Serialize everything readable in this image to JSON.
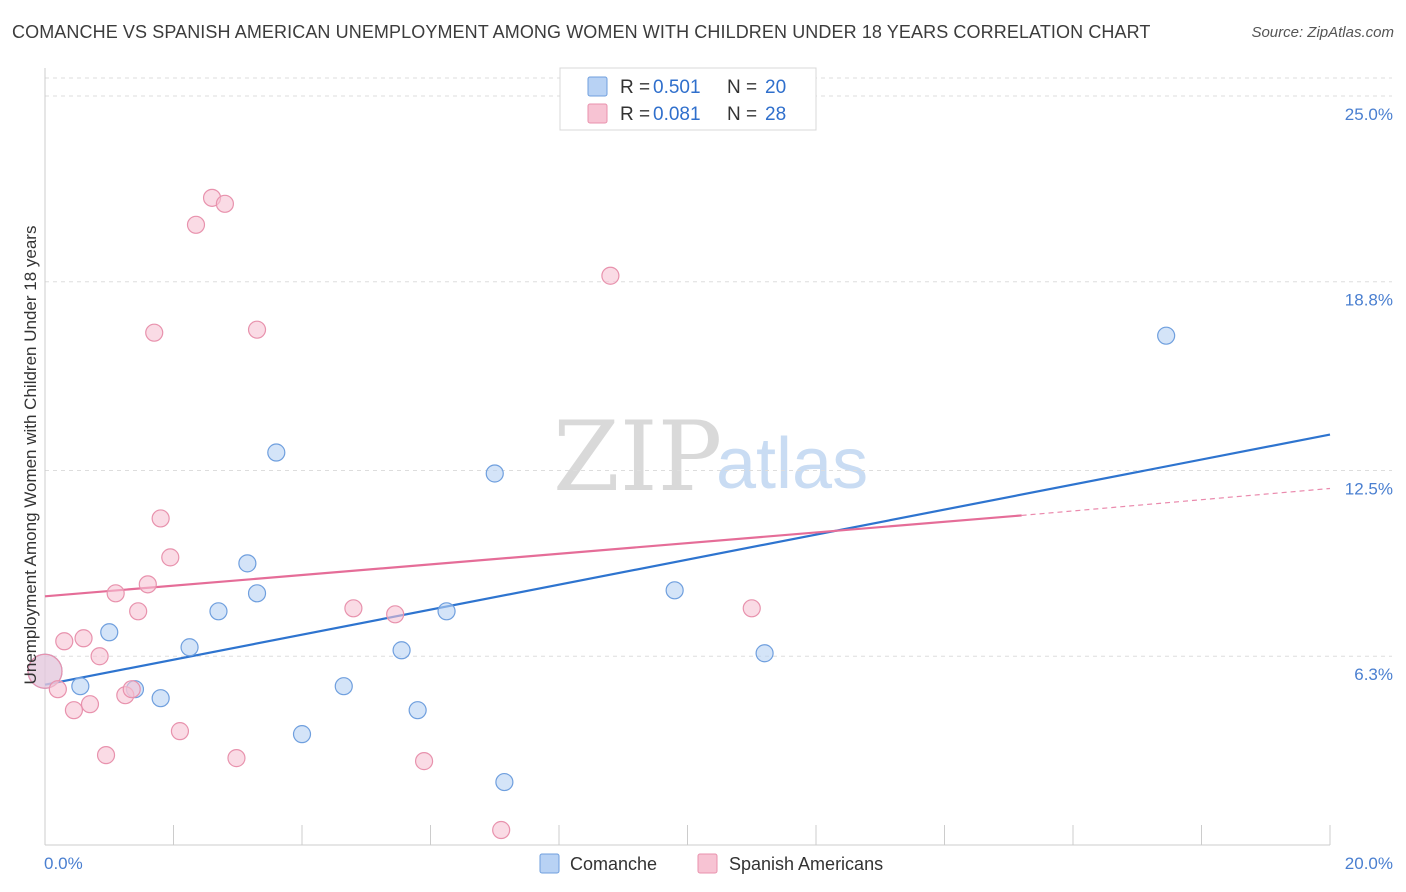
{
  "page": {
    "title": "COMANCHE VS SPANISH AMERICAN UNEMPLOYMENT AMONG WOMEN WITH CHILDREN UNDER 18 YEARS CORRELATION CHART",
    "source": "Source: ZipAtlas.com",
    "watermark": {
      "zip": "ZIP",
      "atlas": "atlas"
    }
  },
  "colors": {
    "comanche_fill": "#b8d2f4",
    "comanche_stroke": "#6f9fde",
    "comanche_line": "#2e74cf",
    "spanish_fill": "#f7c3d3",
    "spanish_stroke": "#e892ad",
    "spanish_line": "#e56d98",
    "grid": "#dddddd",
    "tick_label": "#4a7fd0"
  },
  "chart_data": {
    "type": "scatter",
    "title": "COMANCHE VS SPANISH AMERICAN UNEMPLOYMENT AMONG WOMEN WITH CHILDREN UNDER 18 YEARS CORRELATION CHART",
    "xlabel": "",
    "ylabel": "Unemployment Among Women with Children Under 18 years",
    "xlim": [
      0,
      20
    ],
    "ylim": [
      0,
      25.6
    ],
    "x_tick_labels": [
      "0.0%",
      "20.0%"
    ],
    "y_ticks": [
      6.3,
      12.5,
      18.8,
      25.0
    ],
    "y_tick_labels": [
      "6.3%",
      "12.5%",
      "18.8%",
      "25.0%"
    ],
    "grid": true,
    "legend": {
      "position": "top-center",
      "entries": [
        {
          "r_label": "R =",
          "r_value": "0.501",
          "n_label": "N =",
          "n_value": "20"
        },
        {
          "r_label": "R =",
          "r_value": "0.081",
          "n_label": "N =",
          "n_value": "28"
        }
      ]
    },
    "series": [
      {
        "name": "Comanche",
        "points": [
          {
            "x": 0.0,
            "y": 5.8,
            "big": true
          },
          {
            "x": 0.55,
            "y": 5.3
          },
          {
            "x": 1.0,
            "y": 7.1
          },
          {
            "x": 1.4,
            "y": 5.2
          },
          {
            "x": 1.8,
            "y": 4.9
          },
          {
            "x": 2.25,
            "y": 6.6
          },
          {
            "x": 2.7,
            "y": 7.8
          },
          {
            "x": 3.15,
            "y": 9.4
          },
          {
            "x": 3.3,
            "y": 8.4
          },
          {
            "x": 3.6,
            "y": 13.1
          },
          {
            "x": 4.0,
            "y": 3.7
          },
          {
            "x": 4.65,
            "y": 5.3
          },
          {
            "x": 5.55,
            "y": 6.5
          },
          {
            "x": 5.8,
            "y": 4.5
          },
          {
            "x": 6.25,
            "y": 7.8
          },
          {
            "x": 7.0,
            "y": 12.4
          },
          {
            "x": 7.15,
            "y": 2.1
          },
          {
            "x": 9.8,
            "y": 8.5
          },
          {
            "x": 11.2,
            "y": 6.4
          },
          {
            "x": 17.45,
            "y": 17.0
          }
        ],
        "trend": {
          "x0": 0,
          "y0": 5.35,
          "x1": 20,
          "y1": 13.7
        }
      },
      {
        "name": "Spanish Americans",
        "points": [
          {
            "x": 0.0,
            "y": 5.8,
            "big": true
          },
          {
            "x": 0.2,
            "y": 5.2
          },
          {
            "x": 0.3,
            "y": 6.8
          },
          {
            "x": 0.45,
            "y": 4.5
          },
          {
            "x": 0.6,
            "y": 6.9
          },
          {
            "x": 0.7,
            "y": 4.7
          },
          {
            "x": 0.85,
            "y": 6.3
          },
          {
            "x": 0.95,
            "y": 3.0
          },
          {
            "x": 1.1,
            "y": 8.4
          },
          {
            "x": 1.25,
            "y": 5.0
          },
          {
            "x": 1.35,
            "y": 5.2
          },
          {
            "x": 1.45,
            "y": 7.8
          },
          {
            "x": 1.6,
            "y": 8.7
          },
          {
            "x": 1.7,
            "y": 17.1
          },
          {
            "x": 1.8,
            "y": 10.9
          },
          {
            "x": 1.95,
            "y": 9.6
          },
          {
            "x": 2.1,
            "y": 3.8
          },
          {
            "x": 2.35,
            "y": 20.7
          },
          {
            "x": 2.6,
            "y": 21.6
          },
          {
            "x": 2.8,
            "y": 21.4
          },
          {
            "x": 2.98,
            "y": 2.9
          },
          {
            "x": 3.3,
            "y": 17.2
          },
          {
            "x": 4.8,
            "y": 7.9
          },
          {
            "x": 5.45,
            "y": 7.7
          },
          {
            "x": 5.9,
            "y": 2.8
          },
          {
            "x": 7.1,
            "y": 0.5
          },
          {
            "x": 8.8,
            "y": 19.0
          },
          {
            "x": 11.0,
            "y": 7.9
          }
        ],
        "trend": {
          "x0": 0,
          "y0": 8.3,
          "x1": 15.2,
          "y1": 11.0,
          "dash_x1": 20,
          "dash_y1": 11.9
        }
      }
    ]
  }
}
